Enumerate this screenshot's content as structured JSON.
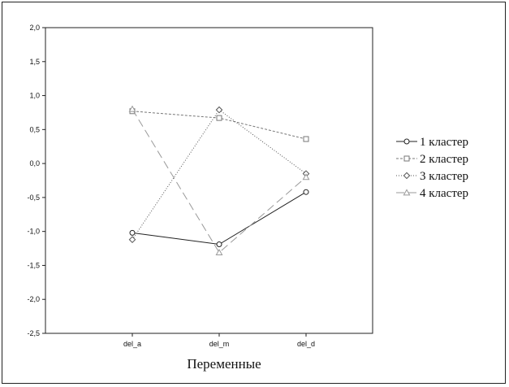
{
  "chart_data": {
    "type": "line",
    "title": "",
    "xlabel": "Переменные",
    "ylabel": "",
    "categories": [
      "del_a",
      "del_m",
      "del_d"
    ],
    "ylim": [
      -2.5,
      2.0
    ],
    "yticks": [
      "2,0",
      "1,5",
      "1,0",
      "0,5",
      "0,0",
      "-0,5",
      "-1,0",
      "-1,5",
      "-2,0",
      "-2,5"
    ],
    "grid": false,
    "legend_position": "right",
    "series": [
      {
        "name": "1 кластер",
        "values": [
          -1.02,
          -1.19,
          -0.42
        ],
        "marker": "circle",
        "dash": "solid",
        "color": "#222222"
      },
      {
        "name": "2 кластер",
        "values": [
          0.77,
          0.67,
          0.36
        ],
        "marker": "square",
        "dash": "dash-short",
        "color": "#777777"
      },
      {
        "name": "3 кластер",
        "values": [
          -1.12,
          0.79,
          -0.15
        ],
        "marker": "diamond",
        "dash": "dot",
        "color": "#555555"
      },
      {
        "name": "4 кластер",
        "values": [
          0.8,
          -1.31,
          -0.2
        ],
        "marker": "triangle",
        "dash": "dash-long",
        "color": "#999999"
      }
    ]
  }
}
